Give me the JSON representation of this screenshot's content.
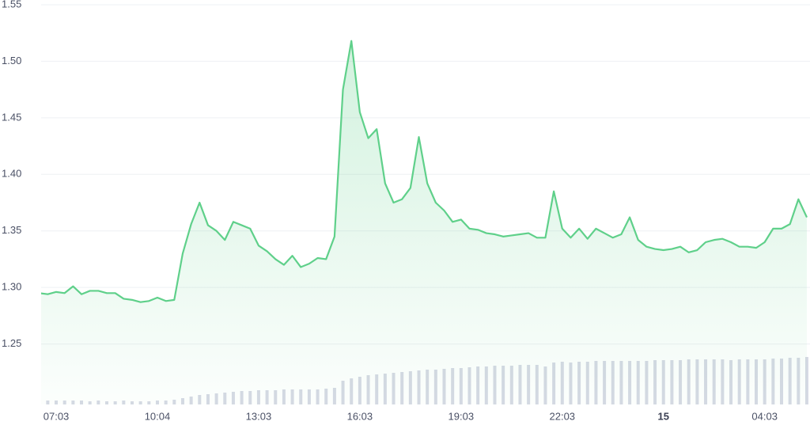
{
  "chart_data": {
    "type": "line",
    "categories": [
      null,
      null,
      "07:03",
      null,
      null,
      null,
      null,
      null,
      null,
      null,
      null,
      null,
      null,
      null,
      "10:04",
      null,
      null,
      null,
      null,
      null,
      null,
      null,
      null,
      null,
      null,
      null,
      "13:03",
      null,
      null,
      null,
      null,
      null,
      null,
      null,
      null,
      null,
      null,
      null,
      "16:03",
      null,
      null,
      null,
      null,
      null,
      null,
      null,
      null,
      null,
      null,
      null,
      "19:03",
      null,
      null,
      null,
      null,
      null,
      null,
      null,
      null,
      null,
      null,
      null,
      "22:03",
      null,
      null,
      null,
      null,
      null,
      null,
      null,
      null,
      null,
      null,
      null,
      "15",
      null,
      null,
      null,
      null,
      null,
      null,
      null,
      null,
      null,
      null,
      null,
      "04:03",
      null,
      null,
      null,
      null,
      null
    ],
    "series": [
      {
        "color": "#5fd08a",
        "values": [
          1.295,
          1.294,
          1.296,
          1.295,
          1.301,
          1.294,
          1.297,
          1.297,
          1.295,
          1.295,
          1.29,
          1.289,
          1.287,
          1.288,
          1.291,
          1.288,
          1.289,
          1.33,
          1.356,
          1.375,
          1.355,
          1.35,
          1.342,
          1.358,
          1.355,
          1.352,
          1.337,
          1.332,
          1.325,
          1.32,
          1.328,
          1.318,
          1.321,
          1.326,
          1.325,
          1.345,
          1.475,
          1.518,
          1.455,
          1.432,
          1.44,
          1.392,
          1.375,
          1.378,
          1.388,
          1.433,
          1.392,
          1.375,
          1.368,
          1.358,
          1.36,
          1.352,
          1.351,
          1.348,
          1.347,
          1.345,
          1.346,
          1.347,
          1.348,
          1.344,
          1.344,
          1.385,
          1.352,
          1.344,
          1.352,
          1.343,
          1.352,
          1.348,
          1.344,
          1.347,
          1.362,
          1.342,
          1.336,
          1.334,
          1.333,
          1.334,
          1.336,
          1.331,
          1.333,
          1.34,
          1.342,
          1.343,
          1.34,
          1.336,
          1.336,
          1.335,
          1.34,
          1.352,
          1.352,
          1.356,
          1.378,
          1.362
        ]
      },
      {
        "type": "bar",
        "axis": "y2",
        "color": "#d6d9e4",
        "values": [
          4,
          5,
          5,
          5,
          5,
          5,
          4,
          5,
          4,
          4,
          5,
          4,
          4,
          4,
          5,
          5,
          6,
          8,
          10,
          12,
          13,
          14,
          15,
          16,
          17,
          17,
          18,
          18,
          18,
          19,
          19,
          19,
          19,
          19,
          20,
          21,
          30,
          33,
          35,
          37,
          38,
          39,
          40,
          41,
          42,
          43,
          44,
          44,
          45,
          46,
          46,
          47,
          48,
          48,
          49,
          49,
          49,
          50,
          50,
          50,
          48,
          53,
          54,
          53,
          54,
          54,
          55,
          55,
          55,
          55,
          55,
          55,
          55,
          56,
          56,
          56,
          56,
          57,
          57,
          57,
          57,
          57,
          56,
          57,
          57,
          57,
          57,
          58,
          58,
          59,
          59,
          60
        ]
      }
    ],
    "ylim": [
      1.2,
      1.55
    ],
    "yticks": [
      {
        "value": 1.25,
        "label": "1.25"
      },
      {
        "value": 1.3,
        "label": "1.30"
      },
      {
        "value": 1.35,
        "label": "1.35"
      },
      {
        "value": 1.4,
        "label": "1.40"
      },
      {
        "value": 1.45,
        "label": "1.45"
      },
      {
        "value": 1.5,
        "label": "1.50"
      },
      {
        "value": 1.55,
        "label": "1.55"
      }
    ],
    "y2lim": [
      0,
      500
    ],
    "grid": true
  }
}
